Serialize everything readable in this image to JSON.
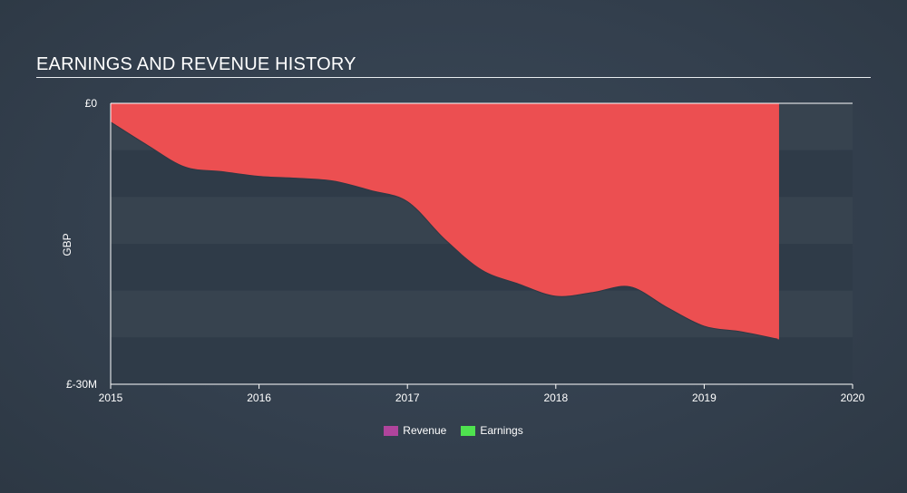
{
  "chart_data": {
    "type": "area",
    "title": "EARNINGS AND REVENUE HISTORY",
    "ylabel": "GBP",
    "xlabel": "",
    "ylim": [
      -30,
      0
    ],
    "xlim": [
      2015,
      2020
    ],
    "y_ticks": [
      {
        "value": 0,
        "label": "£0"
      },
      {
        "value": -30,
        "label": "£-30M"
      }
    ],
    "x_ticks": [
      {
        "value": 2015,
        "label": "2015"
      },
      {
        "value": 2016,
        "label": "2016"
      },
      {
        "value": 2017,
        "label": "2017"
      },
      {
        "value": 2018,
        "label": "2018"
      },
      {
        "value": 2019,
        "label": "2019"
      },
      {
        "value": 2020,
        "label": "2020"
      }
    ],
    "legend_position": "bottom-center",
    "series": [
      {
        "name": "Revenue",
        "color": "#b0449c",
        "x": [],
        "values": []
      },
      {
        "name": "Earnings",
        "color": "#4fe24f",
        "fill_color": "#ec4f51",
        "x": [
          2015.0,
          2015.25,
          2015.5,
          2015.75,
          2016.0,
          2016.25,
          2016.5,
          2016.75,
          2017.0,
          2017.25,
          2017.5,
          2017.75,
          2018.0,
          2018.25,
          2018.5,
          2018.75,
          2019.0,
          2019.25,
          2019.5
        ],
        "values": [
          -2.0,
          -4.5,
          -6.8,
          -7.3,
          -7.8,
          -8.0,
          -8.3,
          -9.3,
          -10.5,
          -14.5,
          -17.8,
          -19.3,
          -20.6,
          -20.2,
          -19.6,
          -21.8,
          -23.8,
          -24.4,
          -25.2
        ]
      }
    ]
  }
}
